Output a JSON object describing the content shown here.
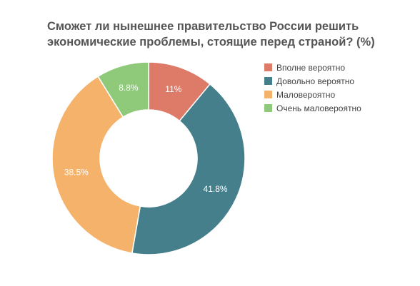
{
  "chart_data": {
    "type": "pie",
    "title": "Сможет ли нынешнее правительство России решить экономические проблемы, стоящие перед страной? (%)",
    "categories": [
      "Вполне вероятно",
      "Довольно вероятно",
      "Маловероятно",
      "Очень маловероятно"
    ],
    "values": [
      11,
      41.8,
      38.5,
      8.8
    ],
    "labels": [
      "11%",
      "41.8%",
      "38.5%",
      "8.8%"
    ],
    "colors": [
      "#dd7b68",
      "#467f8c",
      "#f5b26b",
      "#8fc97a"
    ],
    "donut": true,
    "legend": "right"
  }
}
